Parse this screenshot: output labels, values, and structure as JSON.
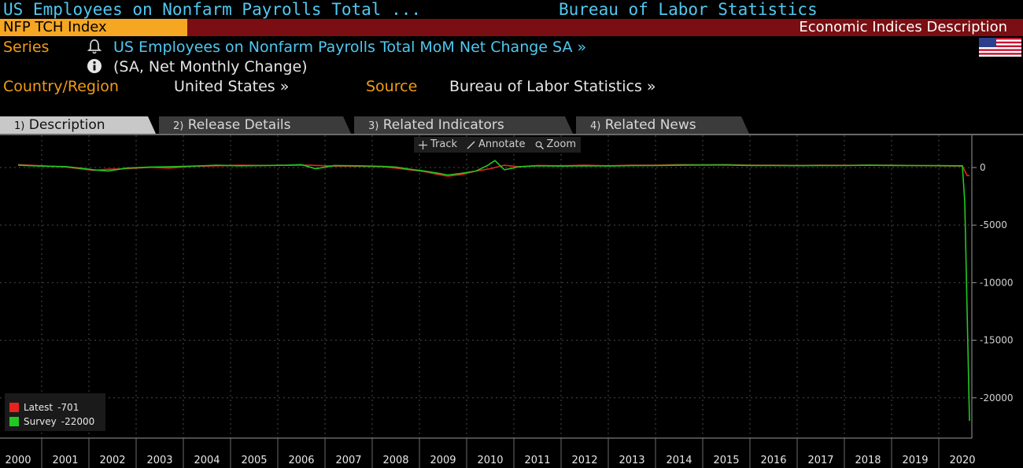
{
  "header": {
    "title_left": "US Employees on Nonfarm Payrolls Total ...",
    "title_right": "Bureau of Labor Statistics",
    "ticker": "NFP TCH Index",
    "band_title": "Economic Indices Description"
  },
  "meta": {
    "series_label": "Series",
    "series_value": "US Employees on Nonfarm Payrolls Total MoM Net Change SA »",
    "series_sub": "(SA, Net Monthly Change)",
    "country_label": "Country/Region",
    "country_value": "United States »",
    "source_label": "Source",
    "source_value": "Bureau of Labor Statistics »"
  },
  "tabs": [
    {
      "num": "1)",
      "label": "Description"
    },
    {
      "num": "2)",
      "label": "Release Details"
    },
    {
      "num": "3)",
      "label": "Related Indicators"
    },
    {
      "num": "4)",
      "label": "Related News"
    }
  ],
  "toolbar": {
    "track": "Track",
    "annotate": "Annotate",
    "zoom": "Zoom"
  },
  "legend": {
    "latest_label": "Latest",
    "latest_value": "-701",
    "survey_label": "Survey",
    "survey_value": "-22000"
  },
  "colors": {
    "latest": "#e8231e",
    "survey": "#22c822",
    "title": "#4fc8f0",
    "label": "#f39c12",
    "band": "#7a0e12",
    "ticker_bg": "#f5a623"
  },
  "icons": [
    "bell-icon",
    "info-icon",
    "us-flag-icon",
    "track-icon",
    "annotate-icon",
    "zoom-icon"
  ],
  "chart_data": {
    "type": "line",
    "title": "",
    "xlabel": "",
    "ylabel": "",
    "ylim": [
      -23500,
      2800
    ],
    "yticks": [
      0,
      -5000,
      -10000,
      -15000,
      -20000
    ],
    "xticks": [
      "2000",
      "2001",
      "2002",
      "2003",
      "2004",
      "2005",
      "2006",
      "2007",
      "2008",
      "2009",
      "2010",
      "2011",
      "2012",
      "2013",
      "2014",
      "2015",
      "2016",
      "2017",
      "2018",
      "2019",
      "2020"
    ],
    "grid": true,
    "legend_position": "bottom-left",
    "series": [
      {
        "name": "Latest",
        "x": [
          2000.0,
          2000.5,
          2001.0,
          2001.3,
          2001.6,
          2001.9,
          2002.3,
          2002.8,
          2003.2,
          2003.7,
          2004.2,
          2004.7,
          2005.2,
          2005.7,
          2006.2,
          2006.7,
          2007.2,
          2007.7,
          2008.0,
          2008.3,
          2008.6,
          2008.9,
          2009.1,
          2009.4,
          2009.7,
          2010.0,
          2010.3,
          2010.6,
          2011.0,
          2011.5,
          2012.0,
          2012.5,
          2013.0,
          2013.5,
          2014.0,
          2014.5,
          2015.0,
          2015.5,
          2016.0,
          2016.5,
          2017.0,
          2017.5,
          2018.0,
          2018.5,
          2019.0,
          2019.5,
          2020.0,
          2020.1,
          2020.15
        ],
        "y": [
          250,
          150,
          50,
          -100,
          -250,
          -150,
          -100,
          20,
          -50,
          100,
          150,
          200,
          180,
          200,
          200,
          120,
          100,
          60,
          -50,
          -200,
          -350,
          -600,
          -750,
          -600,
          -300,
          -100,
          200,
          60,
          180,
          150,
          200,
          150,
          200,
          200,
          250,
          230,
          250,
          200,
          200,
          180,
          200,
          190,
          200,
          200,
          170,
          150,
          120,
          -700,
          -701
        ]
      },
      {
        "name": "Survey",
        "x": [
          2000.0,
          2000.5,
          2001.0,
          2001.3,
          2001.6,
          2001.9,
          2002.3,
          2002.8,
          2003.2,
          2003.7,
          2004.2,
          2004.7,
          2005.2,
          2005.7,
          2006.0,
          2006.3,
          2006.7,
          2007.2,
          2007.7,
          2008.0,
          2008.3,
          2008.6,
          2008.9,
          2009.1,
          2009.4,
          2009.7,
          2009.95,
          2010.1,
          2010.3,
          2010.6,
          2011.0,
          2011.5,
          2012.0,
          2012.5,
          2013.0,
          2013.5,
          2014.0,
          2014.5,
          2015.0,
          2015.5,
          2016.0,
          2016.5,
          2017.0,
          2017.5,
          2018.0,
          2018.5,
          2019.0,
          2019.5,
          2020.0,
          2020.05,
          2020.15
        ],
        "y": [
          200,
          120,
          80,
          -50,
          -200,
          -300,
          -50,
          40,
          60,
          120,
          200,
          150,
          180,
          200,
          250,
          -100,
          180,
          150,
          100,
          40,
          -150,
          -300,
          -500,
          -650,
          -500,
          -300,
          200,
          600,
          -200,
          60,
          150,
          120,
          150,
          130,
          160,
          170,
          200,
          220,
          220,
          180,
          180,
          160,
          180,
          170,
          200,
          180,
          170,
          160,
          150,
          -3000,
          -22000
        ]
      }
    ]
  }
}
